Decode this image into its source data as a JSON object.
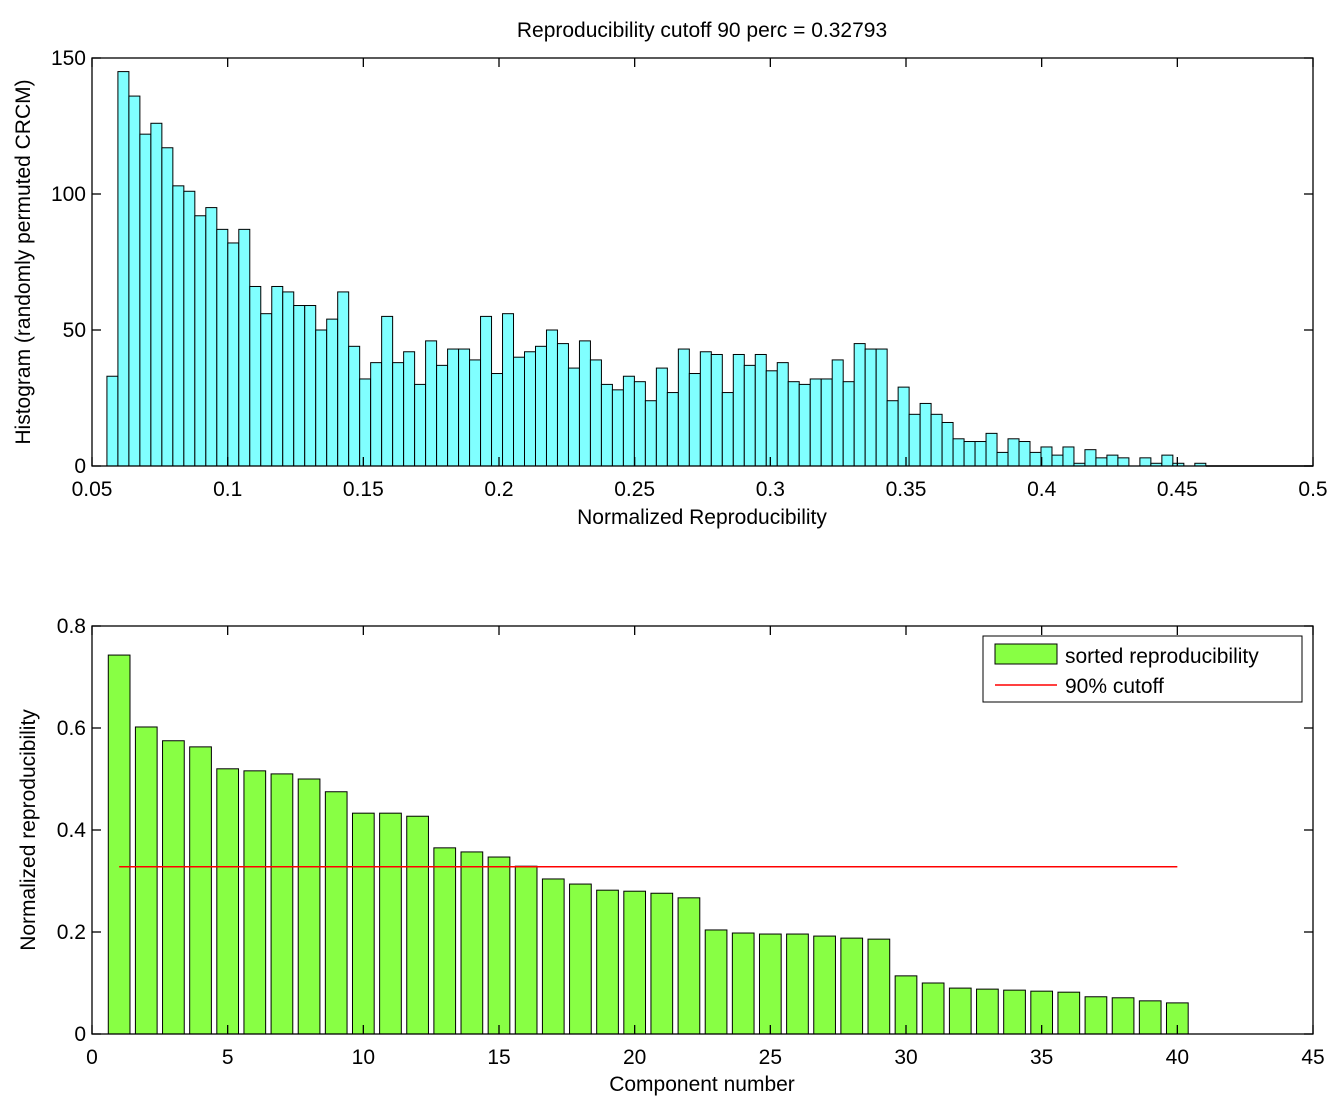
{
  "chart_data": [
    {
      "type": "bar",
      "title": "Reproducibility cutoff 90 perc = 0.32793",
      "xlabel": "Normalized Reproducibility",
      "ylabel": "Histogram (randomly permuted CRCM)",
      "xlim": [
        0.05,
        0.5
      ],
      "ylim": [
        0,
        150
      ],
      "xticks": [
        "0.05",
        "0.1",
        "0.15",
        "0.2",
        "0.25",
        "0.3",
        "0.35",
        "0.4",
        "0.45",
        "0.5"
      ],
      "yticks": [
        "0",
        "50",
        "100",
        "150"
      ],
      "bar_color": "#80ffff",
      "bin_start": 0.0555,
      "bin_width": 0.00405,
      "values": [
        33,
        145,
        136,
        122,
        126,
        117,
        103,
        101,
        92,
        95,
        87,
        82,
        87,
        66,
        56,
        66,
        64,
        59,
        59,
        50,
        54,
        64,
        44,
        32,
        38,
        55,
        38,
        42,
        30,
        46,
        37,
        43,
        43,
        39,
        55,
        34,
        56,
        40,
        42,
        44,
        50,
        45,
        36,
        46,
        39,
        30,
        28,
        33,
        31,
        24,
        36,
        27,
        43,
        34,
        42,
        41,
        27,
        41,
        37,
        41,
        35,
        38,
        31,
        30,
        32,
        32,
        39,
        31,
        45,
        43,
        43,
        24,
        29,
        19,
        23,
        19,
        16,
        10,
        9,
        9,
        12,
        5,
        10,
        9,
        5,
        7,
        4,
        7,
        1,
        6,
        3,
        4,
        3,
        0,
        3,
        1,
        4,
        1,
        0,
        1
      ],
      "grid": false
    },
    {
      "type": "bar",
      "xlabel": "Component number",
      "ylabel": "Normalized reproducibility",
      "xlim": [
        0,
        45
      ],
      "ylim": [
        0,
        0.8
      ],
      "xticks": [
        "0",
        "5",
        "10",
        "15",
        "20",
        "25",
        "30",
        "35",
        "40",
        "45"
      ],
      "yticks": [
        "0",
        "0.2",
        "0.4",
        "0.6",
        "0.8"
      ],
      "legend_position": "top-right",
      "grid": false,
      "series": [
        {
          "name": "sorted reproducibility",
          "type": "bar",
          "color": "#88ff44",
          "x": [
            1,
            2,
            3,
            4,
            5,
            6,
            7,
            8,
            9,
            10,
            11,
            12,
            13,
            14,
            15,
            16,
            17,
            18,
            19,
            20,
            21,
            22,
            23,
            24,
            25,
            26,
            27,
            28,
            29,
            30,
            31,
            32,
            33,
            34,
            35,
            36,
            37,
            38,
            39,
            40
          ],
          "values": [
            0.743,
            0.602,
            0.575,
            0.563,
            0.52,
            0.516,
            0.51,
            0.5,
            0.475,
            0.433,
            0.433,
            0.427,
            0.365,
            0.357,
            0.347,
            0.329,
            0.304,
            0.294,
            0.282,
            0.28,
            0.276,
            0.267,
            0.204,
            0.198,
            0.196,
            0.196,
            0.192,
            0.188,
            0.186,
            0.114,
            0.1,
            0.09,
            0.088,
            0.086,
            0.084,
            0.082,
            0.073,
            0.071,
            0.065,
            0.061
          ]
        },
        {
          "name": "90% cutoff",
          "type": "line",
          "color": "#ff0000",
          "x": [
            1,
            40
          ],
          "values": [
            0.32793,
            0.32793
          ]
        }
      ]
    }
  ]
}
